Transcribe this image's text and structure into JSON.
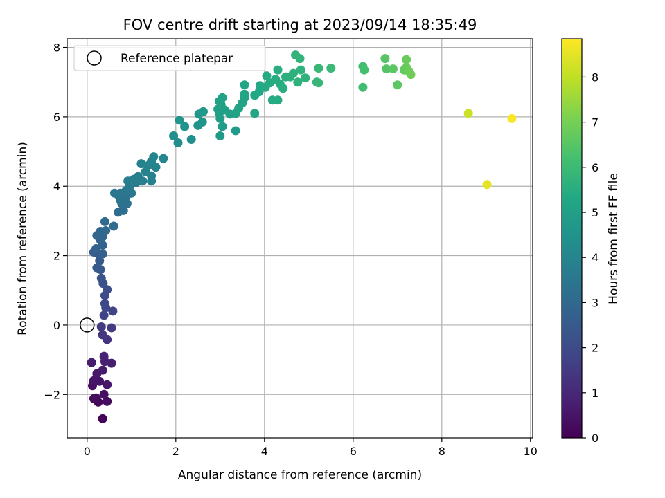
{
  "chart_data": {
    "type": "scatter",
    "title": "FOV centre drift starting at 2023/09/14 18:35:49",
    "xlabel": "Angular distance from reference (arcmin)",
    "ylabel": "Rotation from reference (arcmin)",
    "xlim": [
      -0.45,
      10.05
    ],
    "ylim": [
      -3.25,
      8.25
    ],
    "xticks": [
      0,
      2,
      4,
      6,
      8,
      10
    ],
    "yticks": [
      -2,
      0,
      2,
      4,
      6,
      8
    ],
    "xtick_labels": [
      "0",
      "2",
      "4",
      "6",
      "8",
      "10"
    ],
    "ytick_labels": [
      "−2",
      "0",
      "2",
      "4",
      "6",
      "8"
    ],
    "grid": true,
    "legend": {
      "placement": "top-left",
      "entries": [
        {
          "label": "Reference platepar",
          "marker": "open-circle"
        }
      ]
    },
    "reference_point": {
      "x": 0,
      "y": 0
    },
    "colorbar": {
      "label": "Hours from first FF file",
      "min": 0,
      "max": 8.85,
      "ticks": [
        0,
        1,
        2,
        3,
        4,
        5,
        6,
        7,
        8
      ],
      "tick_labels": [
        "0",
        "1",
        "2",
        "3",
        "4",
        "5",
        "6",
        "7",
        "8"
      ],
      "colormap": "viridis"
    },
    "points": [
      {
        "x": 0.35,
        "y": -2.7,
        "h": 0.05
      },
      {
        "x": 0.25,
        "y": -2.22,
        "h": 0.15
      },
      {
        "x": 0.2,
        "y": -2.1,
        "h": 0.2
      },
      {
        "x": 0.15,
        "y": -2.12,
        "h": 0.25
      },
      {
        "x": 0.45,
        "y": -2.2,
        "h": 0.3
      },
      {
        "x": 0.38,
        "y": -2.0,
        "h": 0.35
      },
      {
        "x": 0.12,
        "y": -1.75,
        "h": 0.4
      },
      {
        "x": 0.28,
        "y": -1.62,
        "h": 0.45
      },
      {
        "x": 0.15,
        "y": -1.6,
        "h": 0.5
      },
      {
        "x": 0.45,
        "y": -1.72,
        "h": 0.55
      },
      {
        "x": 0.22,
        "y": -1.4,
        "h": 0.6
      },
      {
        "x": 0.35,
        "y": -1.3,
        "h": 0.65
      },
      {
        "x": 0.1,
        "y": -1.08,
        "h": 0.7
      },
      {
        "x": 0.55,
        "y": -1.1,
        "h": 0.75
      },
      {
        "x": 0.4,
        "y": -1.05,
        "h": 0.8
      },
      {
        "x": 0.38,
        "y": -0.9,
        "h": 0.85
      },
      {
        "x": 0.45,
        "y": -0.42,
        "h": 1.3
      },
      {
        "x": 0.35,
        "y": -0.28,
        "h": 1.4
      },
      {
        "x": 0.32,
        "y": -0.05,
        "h": 1.5
      },
      {
        "x": 0.55,
        "y": -0.08,
        "h": 1.55
      },
      {
        "x": 0.38,
        "y": 0.28,
        "h": 1.75
      },
      {
        "x": 0.58,
        "y": 0.4,
        "h": 1.8
      },
      {
        "x": 0.42,
        "y": 0.5,
        "h": 1.9
      },
      {
        "x": 0.4,
        "y": 0.62,
        "h": 1.95
      },
      {
        "x": 0.4,
        "y": 0.85,
        "h": 2.05
      },
      {
        "x": 0.45,
        "y": 1.02,
        "h": 2.1
      },
      {
        "x": 0.36,
        "y": 1.2,
        "h": 2.2
      },
      {
        "x": 0.32,
        "y": 1.35,
        "h": 2.3
      },
      {
        "x": 0.3,
        "y": 1.6,
        "h": 2.4
      },
      {
        "x": 0.22,
        "y": 1.65,
        "h": 2.45
      },
      {
        "x": 0.28,
        "y": 1.85,
        "h": 2.5
      },
      {
        "x": 0.25,
        "y": 2.05,
        "h": 2.55
      },
      {
        "x": 0.15,
        "y": 2.1,
        "h": 2.6
      },
      {
        "x": 0.35,
        "y": 2.05,
        "h": 2.65
      },
      {
        "x": 0.35,
        "y": 2.3,
        "h": 2.7
      },
      {
        "x": 0.2,
        "y": 2.2,
        "h": 2.75
      },
      {
        "x": 0.3,
        "y": 2.45,
        "h": 2.8
      },
      {
        "x": 0.22,
        "y": 2.58,
        "h": 2.85
      },
      {
        "x": 0.35,
        "y": 2.55,
        "h": 2.9
      },
      {
        "x": 0.3,
        "y": 2.7,
        "h": 2.95
      },
      {
        "x": 0.42,
        "y": 2.72,
        "h": 3.0
      },
      {
        "x": 0.4,
        "y": 2.98,
        "h": 3.05
      },
      {
        "x": 0.6,
        "y": 2.85,
        "h": 3.1
      },
      {
        "x": 0.7,
        "y": 3.25,
        "h": 3.15
      },
      {
        "x": 0.82,
        "y": 3.3,
        "h": 3.2
      },
      {
        "x": 0.78,
        "y": 3.5,
        "h": 3.25
      },
      {
        "x": 0.9,
        "y": 3.5,
        "h": 3.3
      },
      {
        "x": 0.75,
        "y": 3.6,
        "h": 3.35
      },
      {
        "x": 0.88,
        "y": 3.7,
        "h": 3.4
      },
      {
        "x": 0.7,
        "y": 3.75,
        "h": 3.42
      },
      {
        "x": 0.62,
        "y": 3.8,
        "h": 3.45
      },
      {
        "x": 0.75,
        "y": 3.8,
        "h": 3.48
      },
      {
        "x": 1.0,
        "y": 3.8,
        "h": 3.5
      },
      {
        "x": 0.88,
        "y": 3.88,
        "h": 3.55
      },
      {
        "x": 0.95,
        "y": 3.95,
        "h": 3.6
      },
      {
        "x": 1.1,
        "y": 4.1,
        "h": 3.65
      },
      {
        "x": 0.92,
        "y": 4.15,
        "h": 3.7
      },
      {
        "x": 1.05,
        "y": 4.2,
        "h": 3.75
      },
      {
        "x": 1.25,
        "y": 4.15,
        "h": 3.78
      },
      {
        "x": 1.15,
        "y": 4.28,
        "h": 3.8
      },
      {
        "x": 1.45,
        "y": 4.15,
        "h": 3.83
      },
      {
        "x": 1.45,
        "y": 4.3,
        "h": 3.85
      },
      {
        "x": 1.32,
        "y": 4.42,
        "h": 3.88
      },
      {
        "x": 1.55,
        "y": 4.55,
        "h": 3.9
      },
      {
        "x": 1.22,
        "y": 4.65,
        "h": 3.92
      },
      {
        "x": 1.45,
        "y": 4.72,
        "h": 3.95
      },
      {
        "x": 1.38,
        "y": 4.6,
        "h": 3.97
      },
      {
        "x": 1.5,
        "y": 4.85,
        "h": 4.0
      },
      {
        "x": 1.72,
        "y": 4.8,
        "h": 4.05
      },
      {
        "x": 2.05,
        "y": 5.25,
        "h": 4.3
      },
      {
        "x": 1.95,
        "y": 5.45,
        "h": 4.35
      },
      {
        "x": 2.35,
        "y": 5.35,
        "h": 4.4
      },
      {
        "x": 2.2,
        "y": 5.72,
        "h": 4.45
      },
      {
        "x": 2.5,
        "y": 5.75,
        "h": 4.5
      },
      {
        "x": 2.6,
        "y": 5.85,
        "h": 4.55
      },
      {
        "x": 2.08,
        "y": 5.9,
        "h": 4.6
      },
      {
        "x": 2.52,
        "y": 6.08,
        "h": 4.65
      },
      {
        "x": 2.62,
        "y": 6.15,
        "h": 4.7
      },
      {
        "x": 3.0,
        "y": 5.45,
        "h": 4.75
      },
      {
        "x": 3.35,
        "y": 5.6,
        "h": 4.8
      },
      {
        "x": 3.05,
        "y": 5.72,
        "h": 4.85
      },
      {
        "x": 3.0,
        "y": 5.95,
        "h": 4.9
      },
      {
        "x": 2.98,
        "y": 6.1,
        "h": 4.92
      },
      {
        "x": 3.22,
        "y": 6.08,
        "h": 4.95
      },
      {
        "x": 3.1,
        "y": 6.2,
        "h": 4.98
      },
      {
        "x": 2.95,
        "y": 6.22,
        "h": 5.0
      },
      {
        "x": 3.02,
        "y": 6.35,
        "h": 5.02
      },
      {
        "x": 2.98,
        "y": 6.45,
        "h": 5.05
      },
      {
        "x": 3.05,
        "y": 6.55,
        "h": 5.08
      },
      {
        "x": 3.35,
        "y": 6.1,
        "h": 5.1
      },
      {
        "x": 3.42,
        "y": 6.25,
        "h": 5.12
      },
      {
        "x": 3.5,
        "y": 6.4,
        "h": 5.15
      },
      {
        "x": 3.55,
        "y": 6.55,
        "h": 5.18
      },
      {
        "x": 3.55,
        "y": 6.65,
        "h": 5.2
      },
      {
        "x": 3.55,
        "y": 6.92,
        "h": 5.22
      },
      {
        "x": 3.78,
        "y": 6.1,
        "h": 5.25
      },
      {
        "x": 3.78,
        "y": 6.62,
        "h": 5.28
      },
      {
        "x": 3.88,
        "y": 6.72,
        "h": 5.3
      },
      {
        "x": 3.9,
        "y": 6.9,
        "h": 5.32
      },
      {
        "x": 4.02,
        "y": 6.85,
        "h": 5.35
      },
      {
        "x": 4.05,
        "y": 7.18,
        "h": 5.38
      },
      {
        "x": 4.12,
        "y": 6.98,
        "h": 5.4
      },
      {
        "x": 4.18,
        "y": 6.48,
        "h": 5.42
      },
      {
        "x": 4.3,
        "y": 6.48,
        "h": 5.45
      },
      {
        "x": 4.25,
        "y": 7.08,
        "h": 5.48
      },
      {
        "x": 4.35,
        "y": 6.95,
        "h": 5.5
      },
      {
        "x": 4.42,
        "y": 6.82,
        "h": 5.52
      },
      {
        "x": 4.3,
        "y": 7.35,
        "h": 5.55
      },
      {
        "x": 4.48,
        "y": 7.15,
        "h": 5.58
      },
      {
        "x": 4.58,
        "y": 7.15,
        "h": 5.6
      },
      {
        "x": 4.65,
        "y": 7.25,
        "h": 5.62
      },
      {
        "x": 4.75,
        "y": 7.0,
        "h": 5.65
      },
      {
        "x": 4.82,
        "y": 7.35,
        "h": 5.68
      },
      {
        "x": 4.92,
        "y": 7.12,
        "h": 5.7
      },
      {
        "x": 4.8,
        "y": 7.68,
        "h": 5.72
      },
      {
        "x": 4.7,
        "y": 7.78,
        "h": 5.75
      },
      {
        "x": 5.18,
        "y": 7.0,
        "h": 5.8
      },
      {
        "x": 5.22,
        "y": 6.98,
        "h": 5.85
      },
      {
        "x": 5.22,
        "y": 7.4,
        "h": 5.9
      },
      {
        "x": 5.5,
        "y": 7.4,
        "h": 5.95
      },
      {
        "x": 6.22,
        "y": 6.85,
        "h": 6.1
      },
      {
        "x": 6.22,
        "y": 7.45,
        "h": 6.15
      },
      {
        "x": 6.25,
        "y": 7.35,
        "h": 6.2
      },
      {
        "x": 6.75,
        "y": 7.38,
        "h": 6.45
      },
      {
        "x": 6.72,
        "y": 7.68,
        "h": 6.5
      },
      {
        "x": 6.9,
        "y": 7.38,
        "h": 6.55
      },
      {
        "x": 7.0,
        "y": 6.92,
        "h": 6.6
      },
      {
        "x": 7.15,
        "y": 7.35,
        "h": 6.7
      },
      {
        "x": 7.2,
        "y": 7.42,
        "h": 6.75
      },
      {
        "x": 7.2,
        "y": 7.65,
        "h": 6.8
      },
      {
        "x": 7.25,
        "y": 7.32,
        "h": 6.85
      },
      {
        "x": 7.3,
        "y": 7.22,
        "h": 6.9
      },
      {
        "x": 8.6,
        "y": 6.1,
        "h": 8.15
      },
      {
        "x": 9.02,
        "y": 4.05,
        "h": 8.5
      },
      {
        "x": 9.58,
        "y": 5.95,
        "h": 8.8
      }
    ]
  }
}
